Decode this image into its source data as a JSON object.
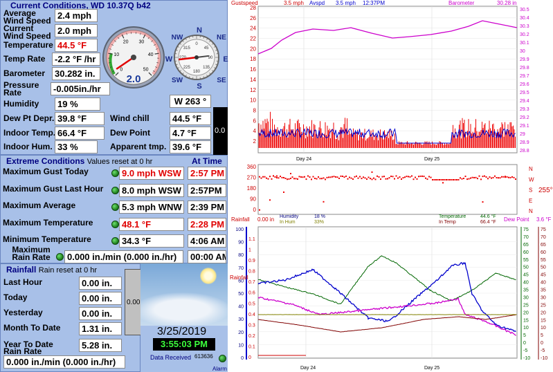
{
  "current": {
    "title": "Current Conditions, WD 10.37Q b42",
    "avg_wind_label": "Average Wind Speed",
    "avg_wind": "2.4 mph",
    "cur_wind_label": "Current Wind Speed",
    "cur_wind": "2.0 mph",
    "temp_label": "Temperature",
    "temp": "44.5 °F",
    "temp_rate_label": "Temp Rate",
    "temp_rate": "-2.2 °F /hr",
    "baro_label": "Barometer",
    "baro": "30.282 in.",
    "press_rate_label": "Pressure Rate",
    "press_rate": "-0.005in./hr",
    "humidity_label": "Humidity",
    "humidity": "19 %",
    "dewpt_label": "Dew Pt Depr.",
    "dewpt": "39.8 °F",
    "indoor_temp_label": "Indoor Temp.",
    "indoor_temp": "66.4 °F",
    "indoor_hum_label": "Indoor Hum.",
    "indoor_hum": "33 %",
    "windchill_label": "Wind chill",
    "windchill": "44.5 °F",
    "dewpoint_label": "Dew Point",
    "dewpoint": "4.7 °F",
    "apparent_label": "Apparent tmp.",
    "apparent": "39.6 °F",
    "wind_dir": "W  263 °",
    "black_val": "0.0"
  },
  "gauge": {
    "speed_reading": "2.0",
    "ticks": [
      "0",
      "10",
      "20",
      "30",
      "40",
      "50"
    ],
    "needle_fraction": 0.04
  },
  "compass": {
    "n": "N",
    "ne": "NE",
    "e": "E",
    "se": "SE",
    "s": "S",
    "sw": "SW",
    "w": "W",
    "nw": "NW",
    "ticks": [
      "0",
      "45",
      "90",
      "135",
      "180",
      "225",
      "270",
      "315"
    ],
    "bearing_deg": 263
  },
  "extreme": {
    "title": "Extreme Conditions",
    "subtitle": "Values reset at 0 hr",
    "at_time": "At Time",
    "rows": [
      {
        "label": "Maximum Gust Today",
        "value": "9.0 mph WSW",
        "time": "2:57 PM",
        "red": true
      },
      {
        "label": "Maximum Gust Last Hour",
        "value": "8.0 mph WSW",
        "time": "2:57PM",
        "red": false
      },
      {
        "label": "Maximum Average",
        "value": "5.3 mph WNW",
        "time": "2:39 PM",
        "red": false
      },
      {
        "label": "Maximum Temperature",
        "value": "48.1 °F",
        "time": "2:28 PM",
        "red": true
      },
      {
        "label": "Minimum Temperature",
        "value": "34.3 °F",
        "time": "4:06 AM",
        "red": false
      },
      {
        "label": "Maximum Rain Rate",
        "value": "0.000 in./min (0.000 in./hr)",
        "time": "00:00 AM",
        "red": false
      }
    ]
  },
  "rainfall": {
    "title": "Rainfall",
    "subtitle": "Rain reset at 0 hr",
    "rows": [
      {
        "label": "Last Hour",
        "value": "0.00 in."
      },
      {
        "label": "Today",
        "value": "0.00 in."
      },
      {
        "label": "Yesterday",
        "value": "0.00 in."
      },
      {
        "label": "Month To Date",
        "value": "1.31 in."
      },
      {
        "label": "Year To Date",
        "value": "5.28 in."
      }
    ],
    "rate_label": "Rain Rate",
    "rate": "0.000 in./min (0.000 in./hr)",
    "bar_value": "0.00"
  },
  "status": {
    "date": "3/25/2019",
    "time": "3:55:03 PM",
    "data_received_label": "Data Received",
    "data_received": "613636",
    "alarm": "Alarm"
  },
  "graphs": {
    "top_header": {
      "gust": "Gustspeed",
      "gust_val": "3.5 mph",
      "avspd": "Avspd",
      "avspd_val": "3.5 mph",
      "time": "12:37PM",
      "baro": "Barometer",
      "baro_val": "30.28 in"
    },
    "top_left_ticks": [
      "28",
      "26",
      "24",
      "22",
      "20",
      "18",
      "16",
      "14",
      "12",
      "10",
      "8",
      "6",
      "4",
      "2"
    ],
    "top_right_ticks": [
      "30.5",
      "30.4",
      "30.3",
      "30.2",
      "30.1",
      "30",
      "29.9",
      "29.8",
      "29.7",
      "29.6",
      "29.5",
      "29.4",
      "29.3",
      "29.2",
      "29.1",
      "29",
      "28.9",
      "28.8"
    ],
    "day_labels": [
      "Day 24",
      "Day 25"
    ],
    "dir_ticks": [
      "360",
      "270",
      "180",
      "90",
      "0"
    ],
    "dir_letters": [
      "N",
      "W",
      "S",
      "E",
      "N"
    ],
    "dir_value": "255°",
    "bottom_header": {
      "rainfall": "Rainfall",
      "rain_val": "0.00 in",
      "humidity": "Humidity",
      "hum_val": "18 %",
      "inhum": "In Hum",
      "inhum_val": "33%",
      "temperature": "Temperature",
      "temp_val": "44.6 °F",
      "intemp": "In Temp",
      "intemp_val": "66.4 °F",
      "dewpoint": "Dew Point",
      "dew_val": "3.6 °F"
    },
    "bot_left_ticks": [
      "100",
      "90",
      "80",
      "70",
      "60",
      "50",
      "40",
      "30",
      "20",
      "10",
      "0"
    ],
    "bot_rain_ticks": [
      "1.1",
      "1",
      "0.9",
      "0.8",
      "0.7",
      "0.6",
      "0.5",
      "0.4",
      "0.3",
      "0.2",
      "0.1",
      "0"
    ],
    "bot_right_ticks_green": [
      "75",
      "70",
      "65",
      "60",
      "55",
      "50",
      "45",
      "40",
      "35",
      "30",
      "25",
      "20",
      "15",
      "10",
      "5",
      "0",
      "-5",
      "-10"
    ],
    "bot_right_ticks_red": [
      "75",
      "70",
      "65",
      "60",
      "55",
      "50",
      "45",
      "40",
      "35",
      "30",
      "25",
      "20",
      "15",
      "10",
      "5",
      "0",
      "-5",
      "-10"
    ],
    "bot_left_label": "Rainfall"
  },
  "colors": {
    "panel": "#a8c0e8",
    "title": "#000080",
    "red": "#e00000",
    "magenta": "#cc00cc",
    "blue": "#0000cc",
    "green": "#006600",
    "darkred": "#800000"
  }
}
